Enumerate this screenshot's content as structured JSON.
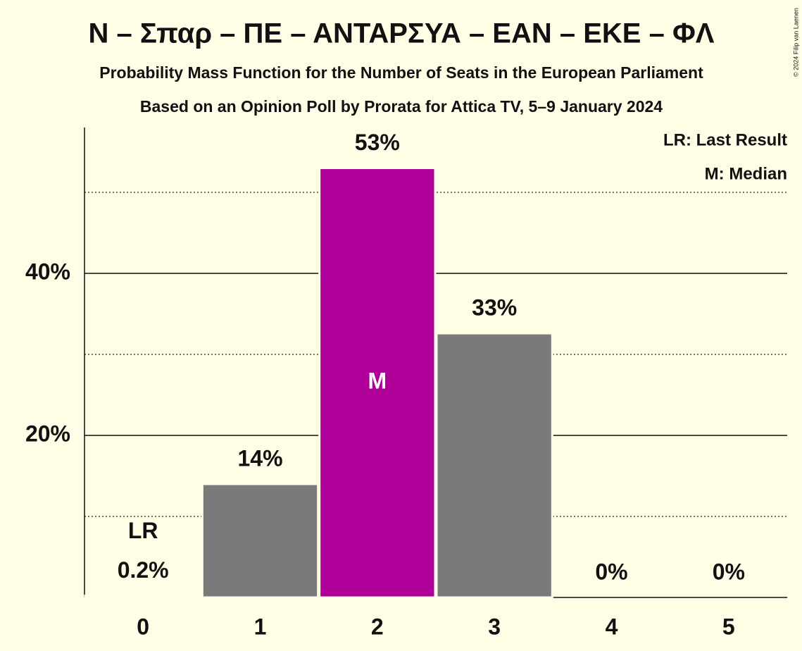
{
  "chart_data": {
    "type": "bar",
    "title": "N – Σπαρ – ΠΕ – ΑΝΤΑΡΣΥΑ – ΕΑΝ – ΕΚΕ – ΦΛ",
    "subtitle": "Probability Mass Function for the Number of Seats in the European Parliament",
    "subtitle2": "Based on an Opinion Poll by Prorata for Attica TV, 5–9 January 2024",
    "categories": [
      "0",
      "1",
      "2",
      "3",
      "4",
      "5"
    ],
    "values": [
      0.2,
      14,
      53,
      32.6,
      0,
      0
    ],
    "value_labels": [
      "0.2%",
      "14%",
      "53%",
      "33%",
      "0%",
      "0%"
    ],
    "colors": [
      "#7a7a7a",
      "#7a7a7a",
      "#b0009a",
      "#7a7a7a",
      "#7a7a7a",
      "#7a7a7a"
    ],
    "last_result": "0",
    "last_result_label": "LR",
    "median": "2",
    "median_label": "M",
    "legend": [
      "LR: Last Result",
      "M: Median"
    ],
    "ylim": [
      0,
      58
    ],
    "yticks": [
      {
        "value": 20,
        "label": "20%"
      },
      {
        "value": 40,
        "label": "40%"
      }
    ],
    "yticks_minor": [
      10,
      30,
      50
    ],
    "grid": true,
    "copyright": "© 2024 Filip van Laenen"
  }
}
